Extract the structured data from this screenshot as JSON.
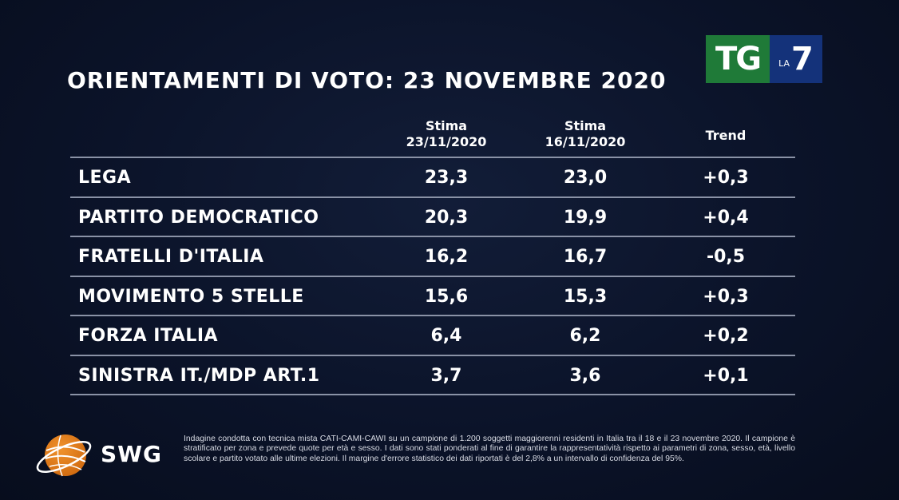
{
  "title": "ORIENTAMENTI DI VOTO: 23 NOVEMBRE 2020",
  "broadcaster_logo": {
    "tg": "TG",
    "la": "LA",
    "seven": "7",
    "colors": {
      "tg_bg": "#1f7a38",
      "la7_bg": "#14327a"
    }
  },
  "chart_data": {
    "type": "table",
    "columns": [
      {
        "line1": "Stima",
        "line2": "23/11/2020"
      },
      {
        "line1": "Stima",
        "line2": "16/11/2020"
      },
      {
        "line1": "Trend",
        "line2": ""
      }
    ],
    "rows": [
      {
        "party": "LEGA",
        "stima_23_11": "23,3",
        "stima_16_11": "23,0",
        "trend": "+0,3"
      },
      {
        "party": "PARTITO DEMOCRATICO",
        "stima_23_11": "20,3",
        "stima_16_11": "19,9",
        "trend": "+0,4"
      },
      {
        "party": "FRATELLI D'ITALIA",
        "stima_23_11": "16,2",
        "stima_16_11": "16,7",
        "trend": "-0,5"
      },
      {
        "party": "MOVIMENTO 5 STELLE",
        "stima_23_11": "15,6",
        "stima_16_11": "15,3",
        "trend": "+0,3"
      },
      {
        "party": "FORZA ITALIA",
        "stima_23_11": "6,4",
        "stima_16_11": "6,2",
        "trend": "+0,2"
      },
      {
        "party": "SINISTRA IT./MDP ART.1",
        "stima_23_11": "3,7",
        "stima_16_11": "3,6",
        "trend": "+0,1"
      }
    ]
  },
  "source_logo": {
    "text": "SWG",
    "colors": {
      "globe": "#f0922b",
      "globe_dark": "#d06a10"
    }
  },
  "footnote": "Indagine condotta con tecnica mista CATI-CAMI-CAWI su un campione di 1.200 soggetti maggiorenni residenti in Italia tra il 18 e il 23 novembre 2020. Il campione è stratificato per zona e prevede quote per età e sesso. I dati sono stati ponderati al fine di garantire la rappresentatività rispetto ai parametri di zona, sesso, età, livello scolare e partito votato alle ultime elezioni. Il margine d'errore statistico dei dati riportati è del 2,8% a un intervallo di confidenza del 95%."
}
